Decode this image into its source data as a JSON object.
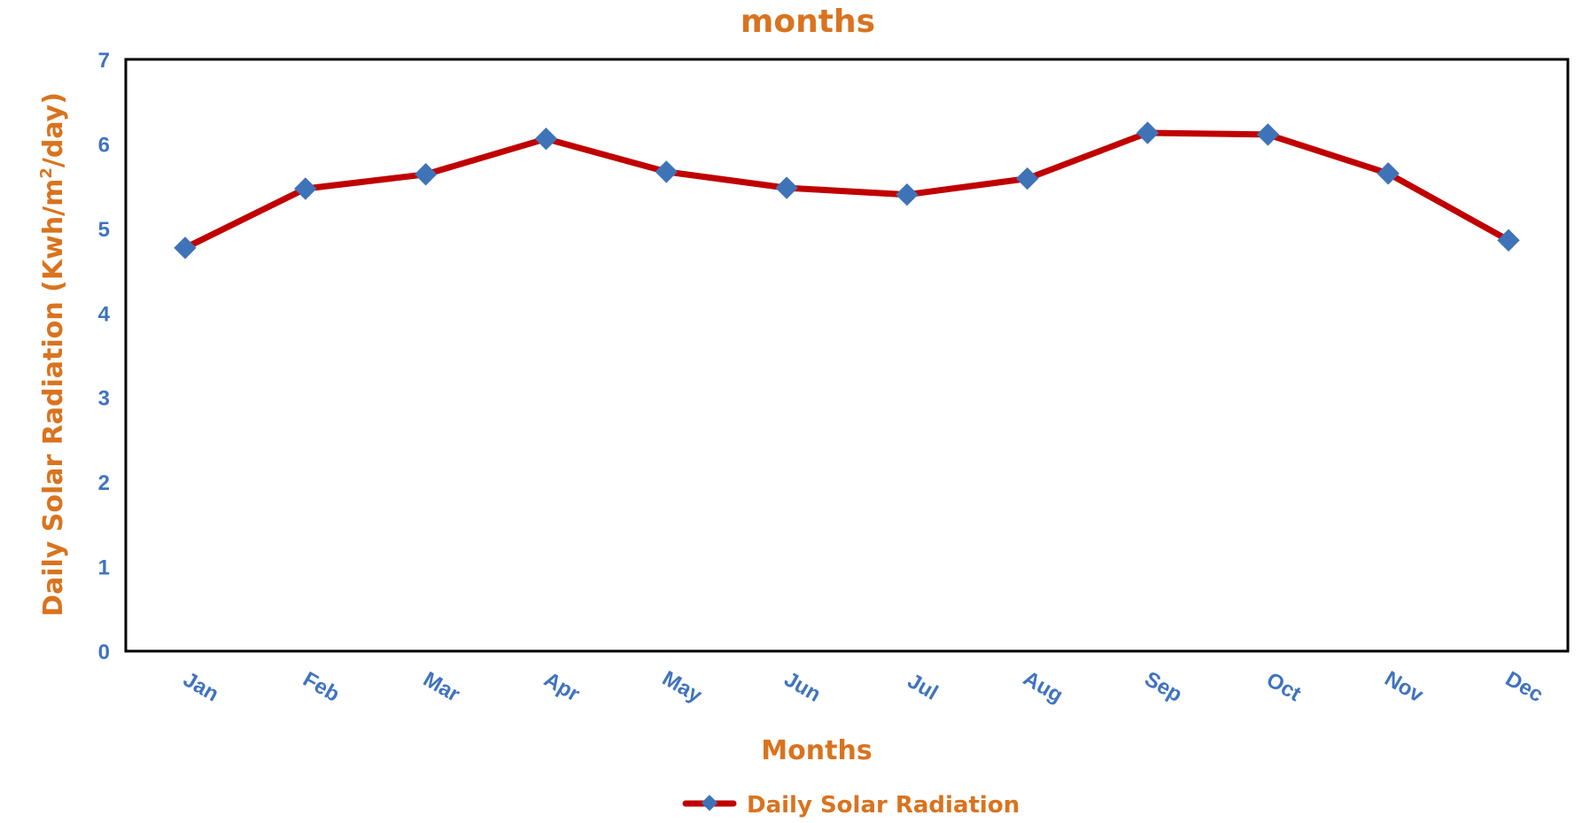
{
  "chart_data": {
    "type": "line",
    "title": "months",
    "xlabel": "Months",
    "ylabel_main": "Daily Solar Radiation (Kwh/m",
    "ylabel_sup": "2",
    "ylabel_tail": "/day)",
    "categories": [
      "Jan",
      "Feb",
      "Mar",
      "Apr",
      "May",
      "Jun",
      "Jul",
      "Aug",
      "Sep",
      "Oct",
      "Nov",
      "Dec"
    ],
    "series": [
      {
        "name": "Daily Solar Radiation",
        "values": [
          4.77,
          5.47,
          5.64,
          6.06,
          5.67,
          5.48,
          5.4,
          5.59,
          6.13,
          6.11,
          5.65,
          4.86
        ]
      }
    ],
    "ylim": [
      0,
      7
    ],
    "yticks": [
      "0",
      "1",
      "2",
      "3",
      "4",
      "5",
      "6",
      "7"
    ],
    "grid": false,
    "legend_position": "bottom-center",
    "colors": {
      "line": "#c00000",
      "marker": "#3f73b8",
      "text_orange": "#d9731f",
      "tick_blue": "#3f73c0",
      "frame": "#000000"
    }
  }
}
